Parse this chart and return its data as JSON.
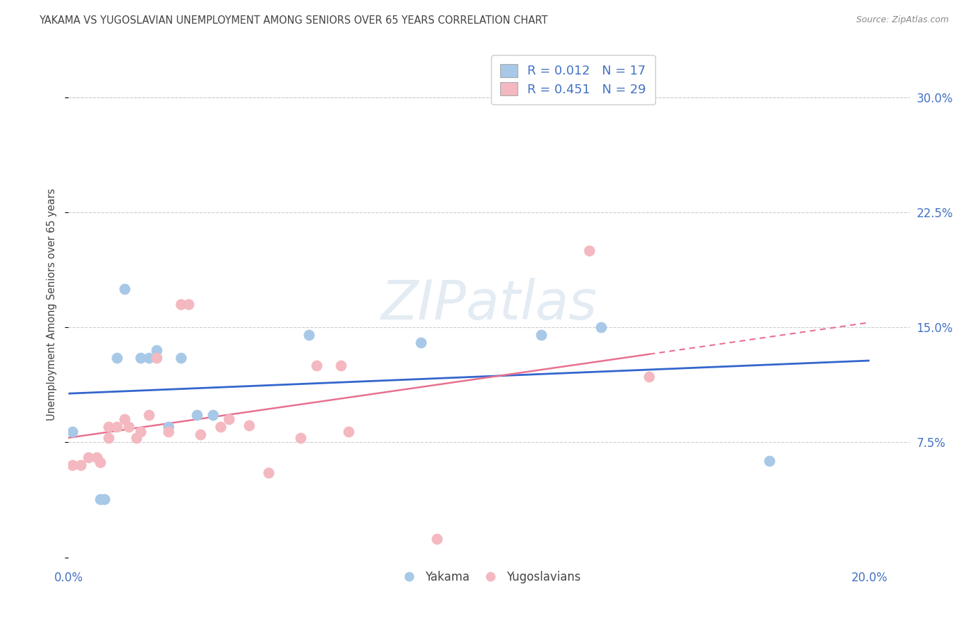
{
  "title": "YAKAMA VS YUGOSLAVIAN UNEMPLOYMENT AMONG SENIORS OVER 65 YEARS CORRELATION CHART",
  "source": "Source: ZipAtlas.com",
  "ylabel": "Unemployment Among Seniors over 65 years",
  "xlim": [
    0.0,
    0.21
  ],
  "ylim": [
    -0.005,
    0.335
  ],
  "xticks": [
    0.0,
    0.05,
    0.1,
    0.15,
    0.2
  ],
  "yticks": [
    0.0,
    0.075,
    0.15,
    0.225,
    0.3
  ],
  "legend_yakama_label": "Yakama",
  "legend_yugo_label": "Yugoslavians",
  "watermark": "ZIPatlas",
  "yakama_color": "#a8c8e8",
  "yugo_color": "#f4b8c0",
  "yakama_line_color": "#3366cc",
  "yugo_line_color": "#e87090",
  "legend_text_color": "#4472c4",
  "title_color": "#444444",
  "axis_label_color": "#444444",
  "tick_color": "#4472c4",
  "grid_color": "#cccccc",
  "background_color": "#ffffff",
  "yakama_x": [
    0.001,
    0.008,
    0.009,
    0.012,
    0.014,
    0.018,
    0.02,
    0.022,
    0.025,
    0.028,
    0.032,
    0.036,
    0.06,
    0.088,
    0.118,
    0.133,
    0.175
  ],
  "yakama_y": [
    0.082,
    0.038,
    0.038,
    0.13,
    0.175,
    0.13,
    0.13,
    0.135,
    0.085,
    0.13,
    0.093,
    0.093,
    0.145,
    0.14,
    0.145,
    0.15,
    0.063
  ],
  "yugo_x": [
    0.001,
    0.003,
    0.005,
    0.007,
    0.008,
    0.01,
    0.01,
    0.012,
    0.014,
    0.015,
    0.017,
    0.018,
    0.02,
    0.022,
    0.025,
    0.028,
    0.03,
    0.033,
    0.038,
    0.04,
    0.045,
    0.05,
    0.058,
    0.062,
    0.068,
    0.07,
    0.092,
    0.13,
    0.145
  ],
  "yugo_y": [
    0.06,
    0.06,
    0.065,
    0.065,
    0.062,
    0.078,
    0.085,
    0.085,
    0.09,
    0.085,
    0.078,
    0.082,
    0.093,
    0.13,
    0.082,
    0.165,
    0.165,
    0.08,
    0.085,
    0.09,
    0.086,
    0.055,
    0.078,
    0.125,
    0.125,
    0.082,
    0.012,
    0.2,
    0.118
  ]
}
